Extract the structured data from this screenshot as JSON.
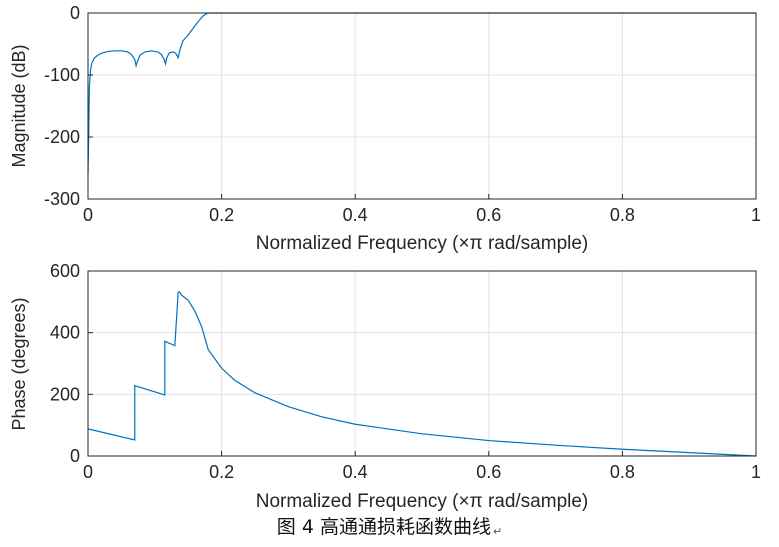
{
  "caption": {
    "text": "图 4  高通通损耗函数曲线",
    "mark": "↵"
  },
  "chart_data": [
    {
      "type": "line",
      "xlabel": "Normalized Frequency  (×π rad/sample)",
      "ylabel": "Magnitude (dB)",
      "xlim": [
        0,
        1
      ],
      "ylim": [
        -300,
        0
      ],
      "xticks": [
        "0",
        "0.2",
        "0.4",
        "0.6",
        "0.8",
        "1"
      ],
      "yticks": [
        "0",
        "-100",
        "-200",
        "-300"
      ],
      "grid": true,
      "color": "#0072BD",
      "series": [
        {
          "x": [
            0,
            0.001,
            0.002,
            0.004,
            0.006,
            0.01,
            0.015,
            0.02,
            0.03,
            0.04,
            0.05,
            0.06,
            0.065,
            0.07,
            0.072,
            0.074,
            0.078,
            0.085,
            0.095,
            0.105,
            0.11,
            0.114,
            0.116,
            0.118,
            0.122,
            0.128,
            0.132,
            0.135,
            0.138,
            0.142,
            0.148,
            0.155,
            0.162,
            0.168,
            0.172,
            0.176,
            0.18,
            0.185,
            0.2,
            0.25,
            0.3,
            0.4,
            0.5,
            0.6,
            0.7,
            0.8,
            0.9,
            1
          ],
          "y": [
            -260,
            -200,
            -120,
            -90,
            -80,
            -72,
            -68,
            -65,
            -62,
            -61,
            -61,
            -63,
            -67,
            -75,
            -85,
            -78,
            -68,
            -63,
            -61,
            -63,
            -67,
            -75,
            -82,
            -72,
            -64,
            -63,
            -66,
            -72,
            -58,
            -45,
            -38,
            -28,
            -18,
            -10,
            -5,
            -2,
            0,
            0,
            0,
            0,
            0,
            0,
            0,
            0,
            0,
            0,
            0,
            0
          ]
        }
      ]
    },
    {
      "type": "line",
      "xlabel": "Normalized Frequency  (×π rad/sample)",
      "ylabel": "Phase (degrees)",
      "xlim": [
        0,
        1
      ],
      "ylim": [
        0,
        600
      ],
      "xticks": [
        "0",
        "0.2",
        "0.4",
        "0.6",
        "0.8",
        "1"
      ],
      "yticks": [
        "0",
        "200",
        "400",
        "600"
      ],
      "grid": true,
      "color": "#0072BD",
      "series": [
        {
          "x": [
            0,
            0.07,
            0.07001,
            0.115,
            0.11501,
            0.13,
            0.13501,
            0.137,
            0.14,
            0.15,
            0.16,
            0.17,
            0.18,
            0.2,
            0.22,
            0.25,
            0.3,
            0.35,
            0.4,
            0.5,
            0.6,
            0.7,
            0.8,
            0.9,
            1
          ],
          "y": [
            88,
            52,
            228,
            198,
            372,
            358,
            532,
            532,
            522,
            505,
            470,
            420,
            345,
            285,
            245,
            205,
            160,
            127,
            103,
            72,
            50,
            35,
            22,
            11,
            0
          ]
        }
      ]
    }
  ]
}
